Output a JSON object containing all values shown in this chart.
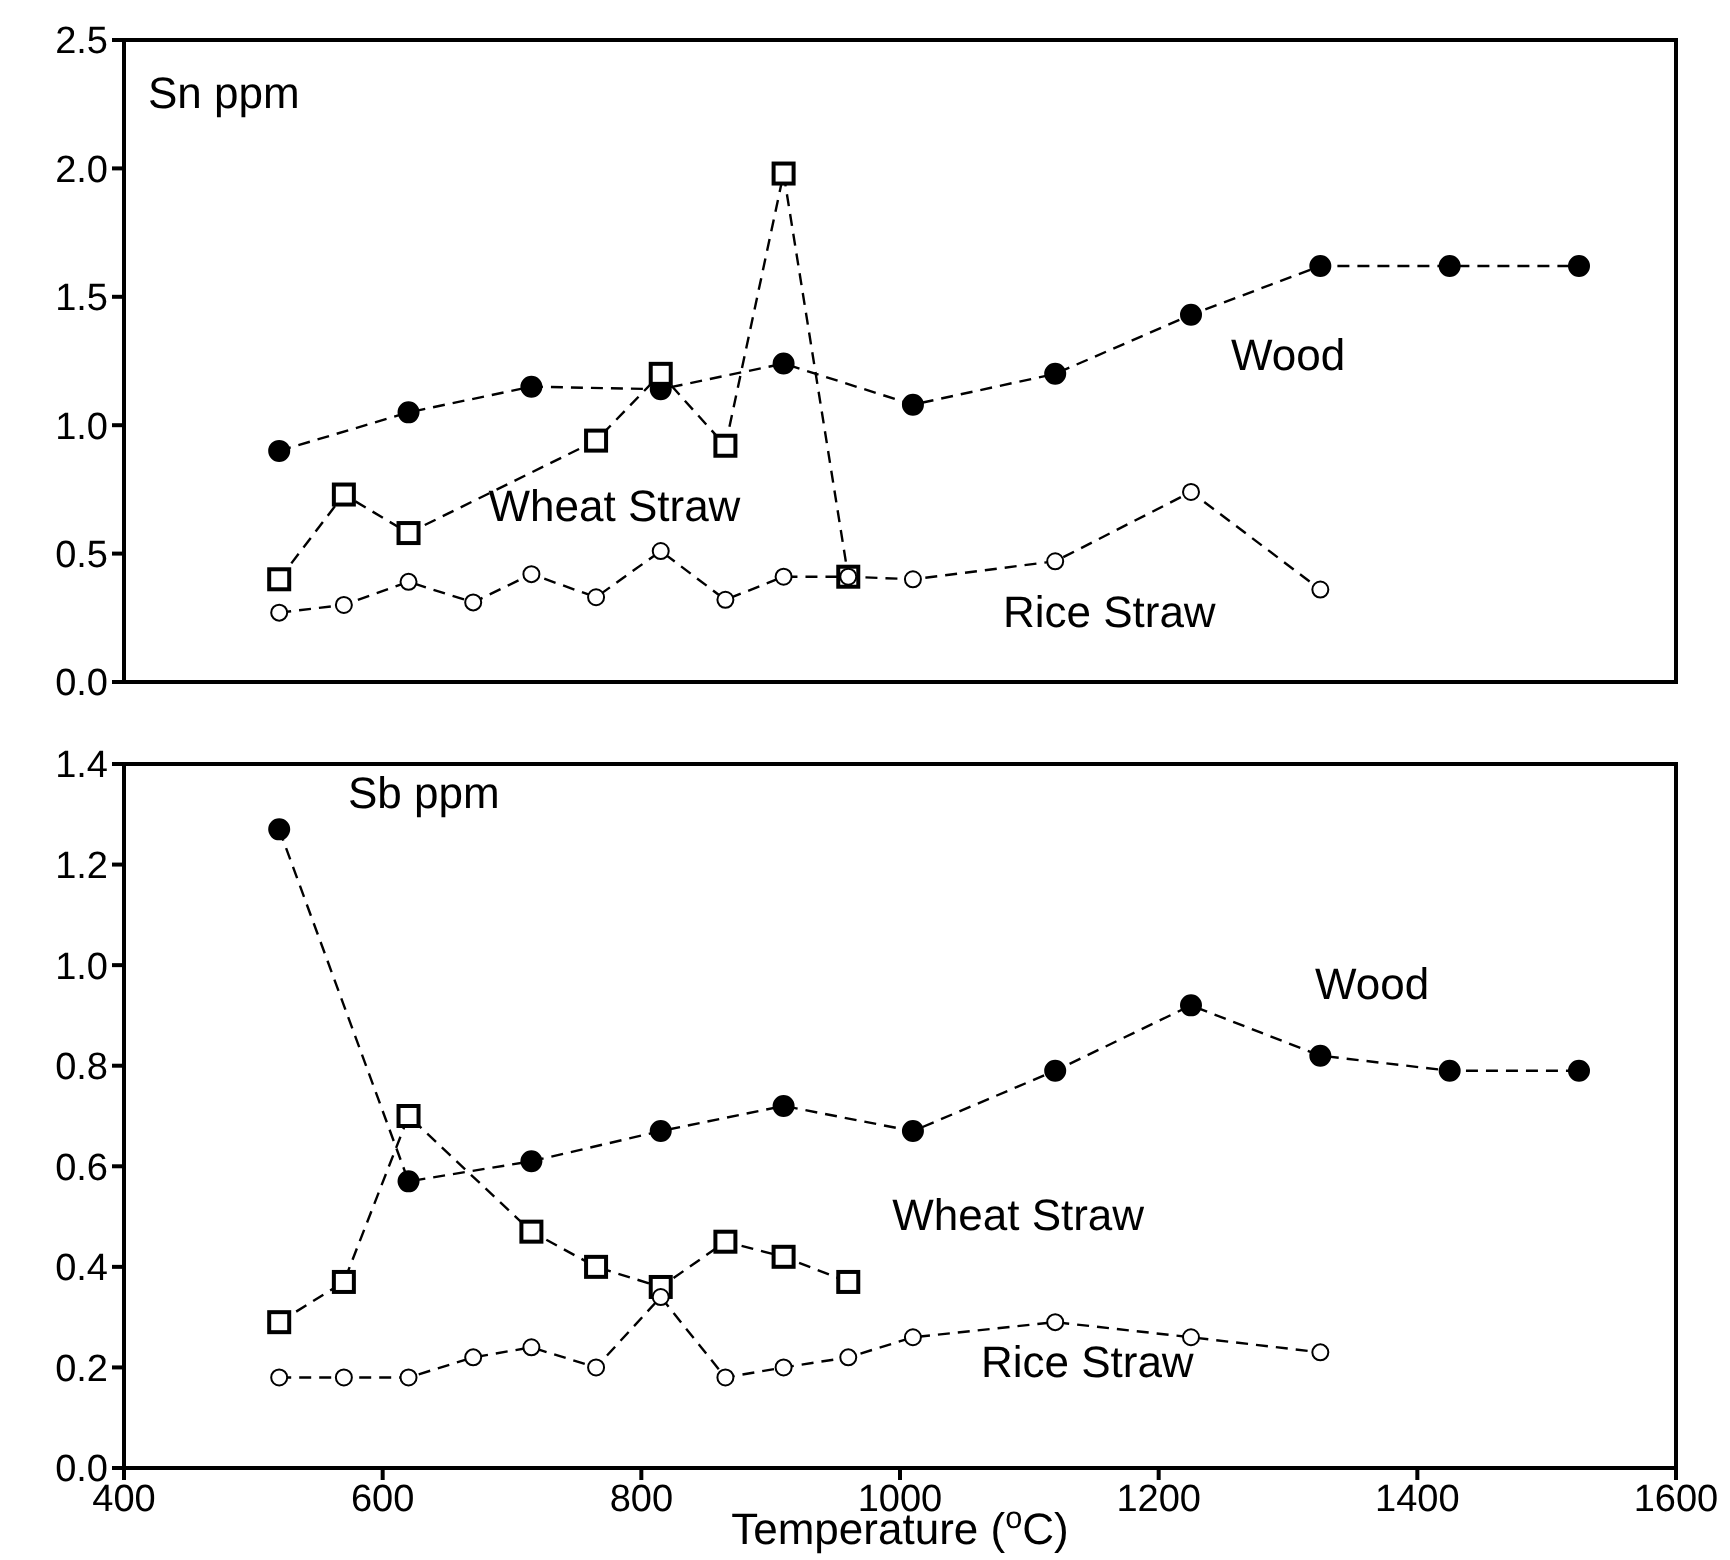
{
  "chart_data": [
    {
      "type": "line",
      "title": "Sn ppm",
      "line_style": "dashed",
      "tick_labels": "y",
      "xlim": [
        400,
        1600
      ],
      "xticks": [
        400,
        600,
        800,
        1000,
        1200,
        1400,
        1600
      ],
      "ylim": [
        0,
        2.5
      ],
      "yticks": [
        {
          "value": 0,
          "label": "0.0"
        },
        {
          "value": 0.5,
          "label": "0.5"
        },
        {
          "value": 1,
          "label": "1.0"
        },
        {
          "value": 1.5,
          "label": "1.5"
        },
        {
          "value": 2,
          "label": "2.0"
        },
        {
          "value": 2.5,
          "label": "2.5"
        }
      ],
      "series": [
        {
          "name": "Wood",
          "color": "#000000",
          "marker": "circle",
          "x": [
            520,
            620,
            715,
            815,
            910,
            1010,
            1120,
            1225,
            1325,
            1425,
            1525
          ],
          "values": [
            0.9,
            1.05,
            1.15,
            1.14,
            1.24,
            1.08,
            1.2,
            1.43,
            1.62,
            1.62,
            1.62
          ]
        },
        {
          "name": "Wheat Straw",
          "color": "#000000",
          "marker": "square",
          "x": [
            520,
            570,
            620,
            765,
            815,
            865,
            910,
            960
          ],
          "values": [
            0.4,
            0.73,
            0.58,
            0.94,
            1.2,
            0.92,
            1.98,
            0.41
          ]
        },
        {
          "name": "Rice Straw",
          "color": "#000000",
          "marker": "circle",
          "x": [
            520,
            570,
            620,
            670,
            715,
            765,
            815,
            865,
            910,
            960,
            1010,
            1120,
            1225,
            1325
          ],
          "values": [
            0.27,
            0.3,
            0.39,
            0.31,
            0.42,
            0.33,
            0.51,
            0.32,
            0.41,
            0.41,
            0.4,
            0.47,
            0.74,
            0.36
          ]
        }
      ]
    },
    {
      "type": "line",
      "title": "Sb ppm",
      "xlabel": "Temperature ($^{o}$C)",
      "line_style": "dashed",
      "xlim": [
        400,
        1600
      ],
      "xticks": [
        400,
        600,
        800,
        1000,
        1200,
        1400,
        1600
      ],
      "ylim": [
        0,
        1.4
      ],
      "yticks": [
        {
          "value": 0,
          "label": "0.0"
        },
        {
          "value": 0.2,
          "label": "0.2"
        },
        {
          "value": 0.4,
          "label": "0.4"
        },
        {
          "value": 0.6,
          "label": "0.6"
        },
        {
          "value": 0.8,
          "label": "0.8"
        },
        {
          "value": 1,
          "label": "1.0"
        },
        {
          "value": 1.2,
          "label": "1.2"
        },
        {
          "value": 1.4,
          "label": "1.4"
        }
      ],
      "series": [
        {
          "name": "Wood",
          "color": "#000000",
          "marker": "circle",
          "x": [
            520,
            620,
            715,
            815,
            910,
            1010,
            1120,
            1225,
            1325,
            1425,
            1525
          ],
          "values": [
            1.27,
            0.57,
            0.61,
            0.67,
            0.72,
            0.67,
            0.79,
            0.92,
            0.82,
            0.79,
            0.79
          ]
        },
        {
          "name": "Wheat Straw",
          "color": "#000000",
          "marker": "square",
          "x": [
            520,
            570,
            620,
            715,
            765,
            815,
            865,
            910,
            960
          ],
          "values": [
            0.29,
            0.37,
            0.7,
            0.47,
            0.4,
            0.36,
            0.45,
            0.42,
            0.37
          ]
        },
        {
          "name": "Rice Straw",
          "color": "#000000",
          "marker": "circle",
          "x": [
            520,
            570,
            620,
            670,
            715,
            765,
            815,
            865,
            910,
            960,
            1010,
            1120,
            1225,
            1325
          ],
          "values": [
            0.18,
            0.18,
            0.18,
            0.22,
            0.24,
            0.2,
            0.34,
            0.18,
            0.2,
            0.22,
            0.26,
            0.29,
            0.26,
            0.23
          ]
        }
      ]
    }
  ]
}
